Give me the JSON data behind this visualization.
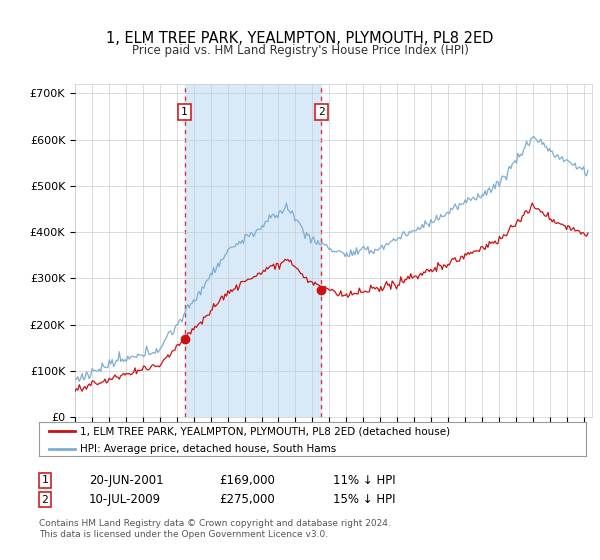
{
  "title": "1, ELM TREE PARK, YEALMPTON, PLYMOUTH, PL8 2ED",
  "subtitle": "Price paid vs. HM Land Registry's House Price Index (HPI)",
  "ylim": [
    0,
    720000
  ],
  "xlim_start": 1995.0,
  "xlim_end": 2025.5,
  "legend_line1": "1, ELM TREE PARK, YEALMPTON, PLYMOUTH, PL8 2ED (detached house)",
  "legend_line2": "HPI: Average price, detached house, South Hams",
  "transaction1_date": "20-JUN-2001",
  "transaction1_price": "£169,000",
  "transaction1_hpi": "11% ↓ HPI",
  "transaction1_year": 2001.46,
  "transaction1_value": 169000,
  "transaction2_date": "10-JUL-2009",
  "transaction2_price": "£275,000",
  "transaction2_hpi": "15% ↓ HPI",
  "transaction2_year": 2009.53,
  "transaction2_value": 275000,
  "hpi_color": "#7eadd4",
  "price_color": "#cc1111",
  "shading_color": "#d8eaf7",
  "footer_text": "Contains HM Land Registry data © Crown copyright and database right 2024.\nThis data is licensed under the Open Government Licence v3.0.",
  "grid_color": "#cccccc",
  "background_color": "#ffffff"
}
